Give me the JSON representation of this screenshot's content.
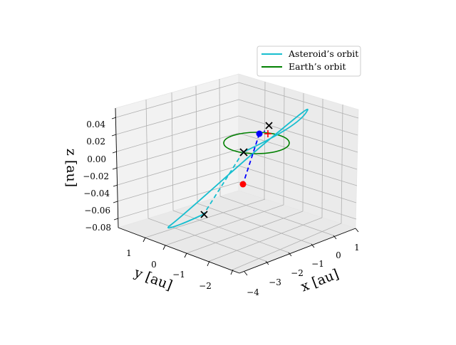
{
  "chart_data": {
    "type": "line",
    "projection": "3d",
    "title": "",
    "xlabel": "x [au]",
    "ylabel": "y [au]",
    "zlabel": "z [au]",
    "xlim": [
      -4.4,
      1.5
    ],
    "ylim": [
      -2.6,
      1.6
    ],
    "zlim": [
      -0.085,
      0.055
    ],
    "xticks": [
      "−4",
      "−3",
      "−2",
      "−1",
      "0",
      "1"
    ],
    "yticks": [
      "1",
      "0",
      "−1",
      "−2"
    ],
    "zticks": [
      "0.04",
      "0.02",
      "0.00",
      "−0.02",
      "−0.04",
      "−0.06",
      "−0.08"
    ],
    "grid": true,
    "legend_position": "upper-right",
    "series": [
      {
        "name": "Asteroid’s orbit",
        "color": "#17becf",
        "style": "solid"
      },
      {
        "name": "Earth’s orbit",
        "color": "#008000",
        "style": "solid"
      }
    ],
    "colors": {
      "asteroid": "#17becf",
      "earth": "#008000",
      "trajectory": "#0000ff",
      "asteroid_position": "#ff0000",
      "earth_position": "#0000ff",
      "crossings": "#000000",
      "red_marker": "#ff0000"
    },
    "markers": [
      {
        "kind": "circle",
        "color": "#0000ff"
      },
      {
        "kind": "circle",
        "color": "#ff0000"
      },
      {
        "kind": "x",
        "color": "#000000"
      },
      {
        "kind": "x",
        "color": "#000000"
      },
      {
        "kind": "x",
        "color": "#000000"
      },
      {
        "kind": "plus",
        "color": "#ff0000"
      }
    ]
  }
}
